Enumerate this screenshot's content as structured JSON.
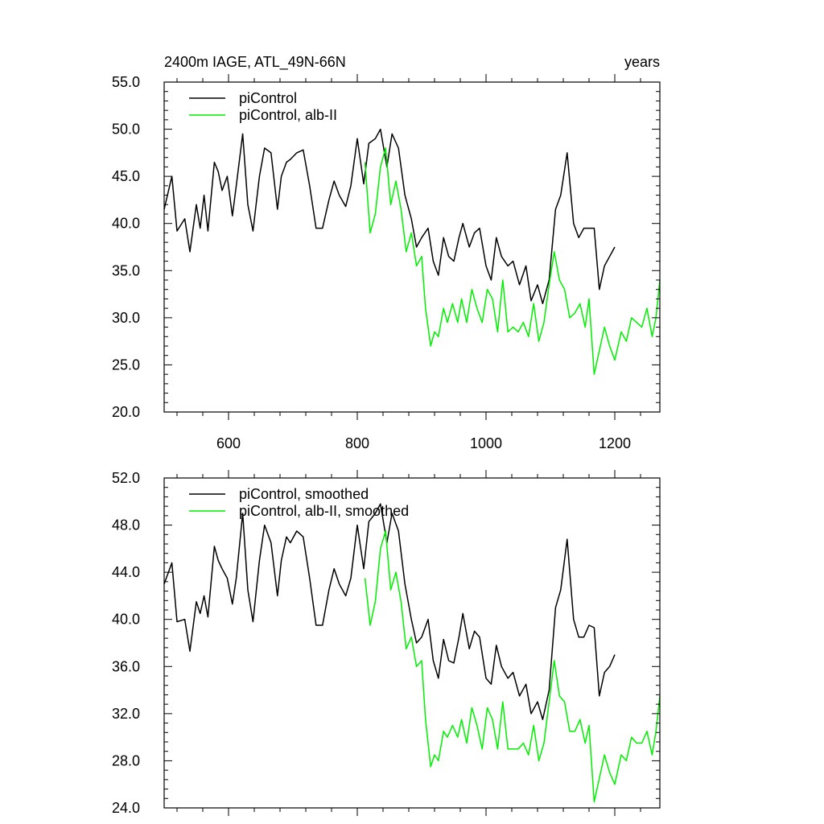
{
  "header": {
    "title": "2400m IAGE, ATL_49N-66N",
    "right_label": "years"
  },
  "colors": {
    "black": "#000000",
    "green": "#00ee00"
  },
  "chart_data": [
    {
      "type": "line",
      "title": "2400m IAGE, ATL_49N-66N",
      "xlabel": "years",
      "xlim": [
        500,
        1270
      ],
      "ylim": [
        20,
        55
      ],
      "y_ticks": [
        20,
        25,
        30,
        35,
        40,
        45,
        50,
        55
      ],
      "y_tick_labels": [
        "20.0",
        "25.0",
        "30.0",
        "35.0",
        "40.0",
        "45.0",
        "50.0",
        "55.0"
      ],
      "x_ticks": [
        600,
        800,
        1000,
        1200
      ],
      "x_tick_labels": [
        "600",
        "800",
        "1000",
        "1200"
      ],
      "legend_position": "top-left",
      "series": [
        {
          "name": "piControl",
          "color": "#000000",
          "x": [
            500,
            512,
            520,
            532,
            540,
            550,
            556,
            562,
            568,
            578,
            584,
            590,
            598,
            606,
            612,
            622,
            630,
            638,
            648,
            656,
            666,
            676,
            682,
            690,
            696,
            706,
            716,
            726,
            736,
            746,
            756,
            764,
            772,
            782,
            790,
            800,
            810,
            818,
            828,
            836,
            846,
            854,
            864,
            874,
            884,
            892,
            900,
            910,
            918,
            926,
            934,
            942,
            950,
            958,
            964,
            974,
            982,
            990,
            1000,
            1008,
            1016,
            1024,
            1034,
            1042,
            1052,
            1062,
            1070,
            1080,
            1088,
            1098,
            1108,
            1116,
            1126,
            1136,
            1144,
            1152,
            1160,
            1168,
            1176,
            1184,
            1192,
            1200
          ],
          "y": [
            41.5,
            45.0,
            39.2,
            40.5,
            37.0,
            42.0,
            39.5,
            43.0,
            39.2,
            46.5,
            45.5,
            43.5,
            45.0,
            40.8,
            44.0,
            49.5,
            42.0,
            39.2,
            45.0,
            48.0,
            47.5,
            41.5,
            45.0,
            46.5,
            46.8,
            47.5,
            47.8,
            44.0,
            39.5,
            39.5,
            42.5,
            44.5,
            43.0,
            41.8,
            44.0,
            49.0,
            44.2,
            48.5,
            49.0,
            50.0,
            46.0,
            49.5,
            48.0,
            43.0,
            40.5,
            37.5,
            38.5,
            39.5,
            36.0,
            34.5,
            38.5,
            36.5,
            36.0,
            38.5,
            40.0,
            37.5,
            39.0,
            39.5,
            35.5,
            34.0,
            38.5,
            36.5,
            35.5,
            36.0,
            33.5,
            35.5,
            31.8,
            33.5,
            31.5,
            34.0,
            41.5,
            43.0,
            47.5,
            40.0,
            38.5,
            39.5,
            39.5,
            39.5,
            33.0,
            35.5,
            36.5,
            37.5
          ]
        },
        {
          "name": "piControl, alb-II",
          "color": "#00ee00",
          "x": [
            812,
            820,
            828,
            836,
            844,
            852,
            860,
            868,
            876,
            884,
            892,
            900,
            906,
            914,
            920,
            926,
            934,
            940,
            948,
            956,
            962,
            970,
            978,
            986,
            994,
            1002,
            1010,
            1018,
            1026,
            1034,
            1042,
            1050,
            1058,
            1066,
            1074,
            1082,
            1090,
            1098,
            1106,
            1114,
            1122,
            1130,
            1138,
            1146,
            1154,
            1160,
            1168,
            1176,
            1184,
            1192,
            1200,
            1210,
            1218,
            1226,
            1234,
            1242,
            1250,
            1258,
            1264,
            1270
          ],
          "y": [
            46.5,
            39.0,
            41.0,
            46.0,
            48.0,
            42.0,
            44.5,
            41.5,
            37.0,
            39.0,
            35.5,
            36.5,
            31.0,
            27.0,
            28.5,
            28.0,
            31.0,
            29.5,
            31.5,
            29.5,
            32.0,
            29.5,
            33.0,
            31.0,
            29.5,
            33.0,
            32.0,
            28.5,
            34.0,
            28.5,
            29.0,
            28.5,
            29.5,
            28.0,
            31.5,
            27.5,
            29.5,
            33.5,
            37.0,
            34.0,
            33.0,
            30.0,
            30.5,
            31.5,
            29.0,
            32.0,
            24.0,
            26.5,
            29.0,
            27.0,
            25.5,
            28.5,
            27.5,
            30.0,
            29.5,
            29.0,
            31.0,
            28.0,
            30.0,
            34.0
          ]
        }
      ]
    },
    {
      "type": "line",
      "xlim": [
        500,
        1270
      ],
      "ylim": [
        24,
        52
      ],
      "y_ticks": [
        24,
        28,
        32,
        36,
        40,
        44,
        48,
        52
      ],
      "y_tick_labels": [
        "24.0",
        "28.0",
        "32.0",
        "36.0",
        "40.0",
        "44.0",
        "48.0",
        "52.0"
      ],
      "x_ticks": [
        600,
        800,
        1000,
        1200
      ],
      "legend_position": "top-left",
      "series": [
        {
          "name": "piControl, smoothed",
          "color": "#000000",
          "x": [
            500,
            512,
            520,
            532,
            540,
            550,
            556,
            562,
            568,
            578,
            584,
            590,
            598,
            606,
            612,
            622,
            630,
            638,
            648,
            656,
            666,
            676,
            682,
            690,
            696,
            706,
            716,
            726,
            736,
            746,
            756,
            764,
            772,
            782,
            790,
            800,
            810,
            818,
            828,
            836,
            846,
            854,
            864,
            874,
            884,
            892,
            900,
            910,
            918,
            926,
            934,
            942,
            950,
            958,
            964,
            974,
            982,
            990,
            1000,
            1008,
            1016,
            1024,
            1034,
            1042,
            1052,
            1062,
            1070,
            1080,
            1088,
            1098,
            1108,
            1116,
            1126,
            1136,
            1144,
            1152,
            1160,
            1168,
            1176,
            1184,
            1192,
            1200
          ],
          "y": [
            43.0,
            44.8,
            39.8,
            40.0,
            37.3,
            41.5,
            40.5,
            42.0,
            40.2,
            46.2,
            45.0,
            44.3,
            43.5,
            41.3,
            43.5,
            49.0,
            42.5,
            39.8,
            45.0,
            48.0,
            46.5,
            42.0,
            45.0,
            47.0,
            46.5,
            47.5,
            47.0,
            43.5,
            39.5,
            39.5,
            42.5,
            44.3,
            43.0,
            42.0,
            43.5,
            48.0,
            44.3,
            48.3,
            49.0,
            49.8,
            46.5,
            49.0,
            47.5,
            43.0,
            40.0,
            38.0,
            38.5,
            40.0,
            36.5,
            35.0,
            38.3,
            36.5,
            36.3,
            38.5,
            40.5,
            37.5,
            39.0,
            38.5,
            35.0,
            34.5,
            37.8,
            36.0,
            35.0,
            35.5,
            33.5,
            34.5,
            32.0,
            33.0,
            31.5,
            34.0,
            41.0,
            42.5,
            46.8,
            40.0,
            38.5,
            38.5,
            39.5,
            39.3,
            33.5,
            35.5,
            36.0,
            37.0
          ]
        },
        {
          "name": "piControl, alb-II, smoothed",
          "color": "#00ee00",
          "x": [
            812,
            820,
            828,
            836,
            844,
            852,
            860,
            868,
            876,
            884,
            892,
            900,
            906,
            914,
            920,
            926,
            934,
            940,
            948,
            956,
            962,
            970,
            978,
            986,
            994,
            1002,
            1010,
            1018,
            1026,
            1034,
            1042,
            1050,
            1058,
            1066,
            1074,
            1082,
            1090,
            1098,
            1106,
            1114,
            1122,
            1130,
            1138,
            1146,
            1154,
            1160,
            1168,
            1176,
            1184,
            1192,
            1200,
            1210,
            1218,
            1226,
            1234,
            1242,
            1250,
            1258,
            1264,
            1270
          ],
          "y": [
            43.5,
            39.5,
            41.5,
            46.0,
            47.5,
            42.5,
            44.0,
            41.5,
            37.5,
            38.5,
            36.0,
            36.5,
            31.5,
            27.5,
            28.5,
            28.0,
            30.5,
            30.0,
            31.0,
            30.0,
            31.5,
            29.5,
            32.5,
            31.0,
            29.0,
            32.5,
            31.5,
            29.0,
            33.0,
            29.0,
            29.0,
            29.0,
            29.5,
            28.5,
            31.0,
            28.0,
            29.5,
            33.0,
            36.5,
            33.5,
            33.0,
            30.5,
            30.5,
            31.5,
            29.5,
            31.0,
            24.5,
            26.5,
            28.5,
            27.0,
            26.0,
            28.5,
            28.0,
            30.0,
            29.5,
            29.5,
            30.5,
            28.5,
            30.5,
            33.5
          ]
        }
      ]
    }
  ]
}
